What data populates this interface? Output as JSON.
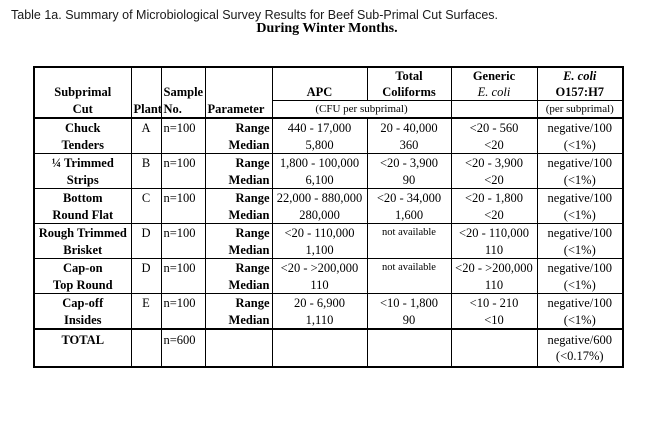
{
  "caption": "Table 1a. Summary of Microbiological Survey Results for Beef Sub-Primal Cut Surfaces.",
  "subcaption": "During Winter Months.",
  "headers": {
    "subprimal_line1": "Subprimal",
    "subprimal_line2": "Cut",
    "plant": "Plant",
    "sample_line1": "Sample",
    "sample_line2": "No.",
    "parameter": "Parameter",
    "apc": "APC",
    "coliforms_line1": "Total",
    "coliforms_line2": "Coliforms",
    "generic_line1": "Generic",
    "generic_line2": "E. coli",
    "ecoli_line1": "E. coli",
    "ecoli_line2": "O157:H7",
    "cfu_unit": "(CFU per subprimal)",
    "ecoli_unit": "(per subprimal)"
  },
  "rows": [
    {
      "cut_line1": "Chuck",
      "cut_line2": "Tenders",
      "plant": "A",
      "sample": "n=100",
      "range_label": "Range",
      "median_label": "Median",
      "apc_range": "440 - 17,000",
      "apc_median": "5,800",
      "coli_range": "20 - 40,000",
      "coli_median": "360",
      "generic_range": "<20 - 560",
      "generic_median": "<20",
      "o157_line1": "negative/100",
      "o157_line2": "(<1%)"
    },
    {
      "cut_line1": "¼ Trimmed",
      "cut_line2": "Strips",
      "plant": "B",
      "sample": "n=100",
      "range_label": "Range",
      "median_label": "Median",
      "apc_range": "1,800 - 100,000",
      "apc_median": "6,100",
      "coli_range": "<20 - 3,900",
      "coli_median": "90",
      "generic_range": "<20 - 3,900",
      "generic_median": "<20",
      "o157_line1": "negative/100",
      "o157_line2": "(<1%)"
    },
    {
      "cut_line1": "Bottom",
      "cut_line2": "Round Flat",
      "plant": "C",
      "sample": "n=100",
      "range_label": "Range",
      "median_label": "Median",
      "apc_range": "22,000 - 880,000",
      "apc_median": "280,000",
      "coli_range": "<20 - 34,000",
      "coli_median": "1,600",
      "generic_range": "<20 - 1,800",
      "generic_median": "<20",
      "o157_line1": "negative/100",
      "o157_line2": "(<1%)"
    },
    {
      "cut_line1": "Rough Trimmed",
      "cut_line2": "Brisket",
      "plant": "D",
      "sample": "n=100",
      "range_label": "Range",
      "median_label": "Median",
      "apc_range": "<20 - 110,000",
      "apc_median": "1,100",
      "coli_range": "not available",
      "coli_median": "",
      "generic_range": "<20 - 110,000",
      "generic_median": "110",
      "o157_line1": "negative/100",
      "o157_line2": "(<1%)"
    },
    {
      "cut_line1": "Cap-on",
      "cut_line2": "Top Round",
      "plant": "D",
      "sample": "n=100",
      "range_label": "Range",
      "median_label": "Median",
      "apc_range": "<20 - >200,000",
      "apc_median": "110",
      "coli_range": "not available",
      "coli_median": "",
      "generic_range": "<20 - >200,000",
      "generic_median": "110",
      "o157_line1": "negative/100",
      "o157_line2": "(<1%)"
    },
    {
      "cut_line1": "Cap-off",
      "cut_line2": "Insides",
      "plant": "E",
      "sample": "n=100",
      "range_label": "Range",
      "median_label": "Median",
      "apc_range": "20 - 6,900",
      "apc_median": "1,110",
      "coli_range": "<10 - 1,800",
      "coli_median": "90",
      "generic_range": "<10 - 210",
      "generic_median": "<10",
      "o157_line1": "negative/100",
      "o157_line2": "(<1%)"
    }
  ],
  "total": {
    "label": "TOTAL",
    "sample": "n=600",
    "o157_line1": "negative/600",
    "o157_line2": "(<0.17%)"
  }
}
